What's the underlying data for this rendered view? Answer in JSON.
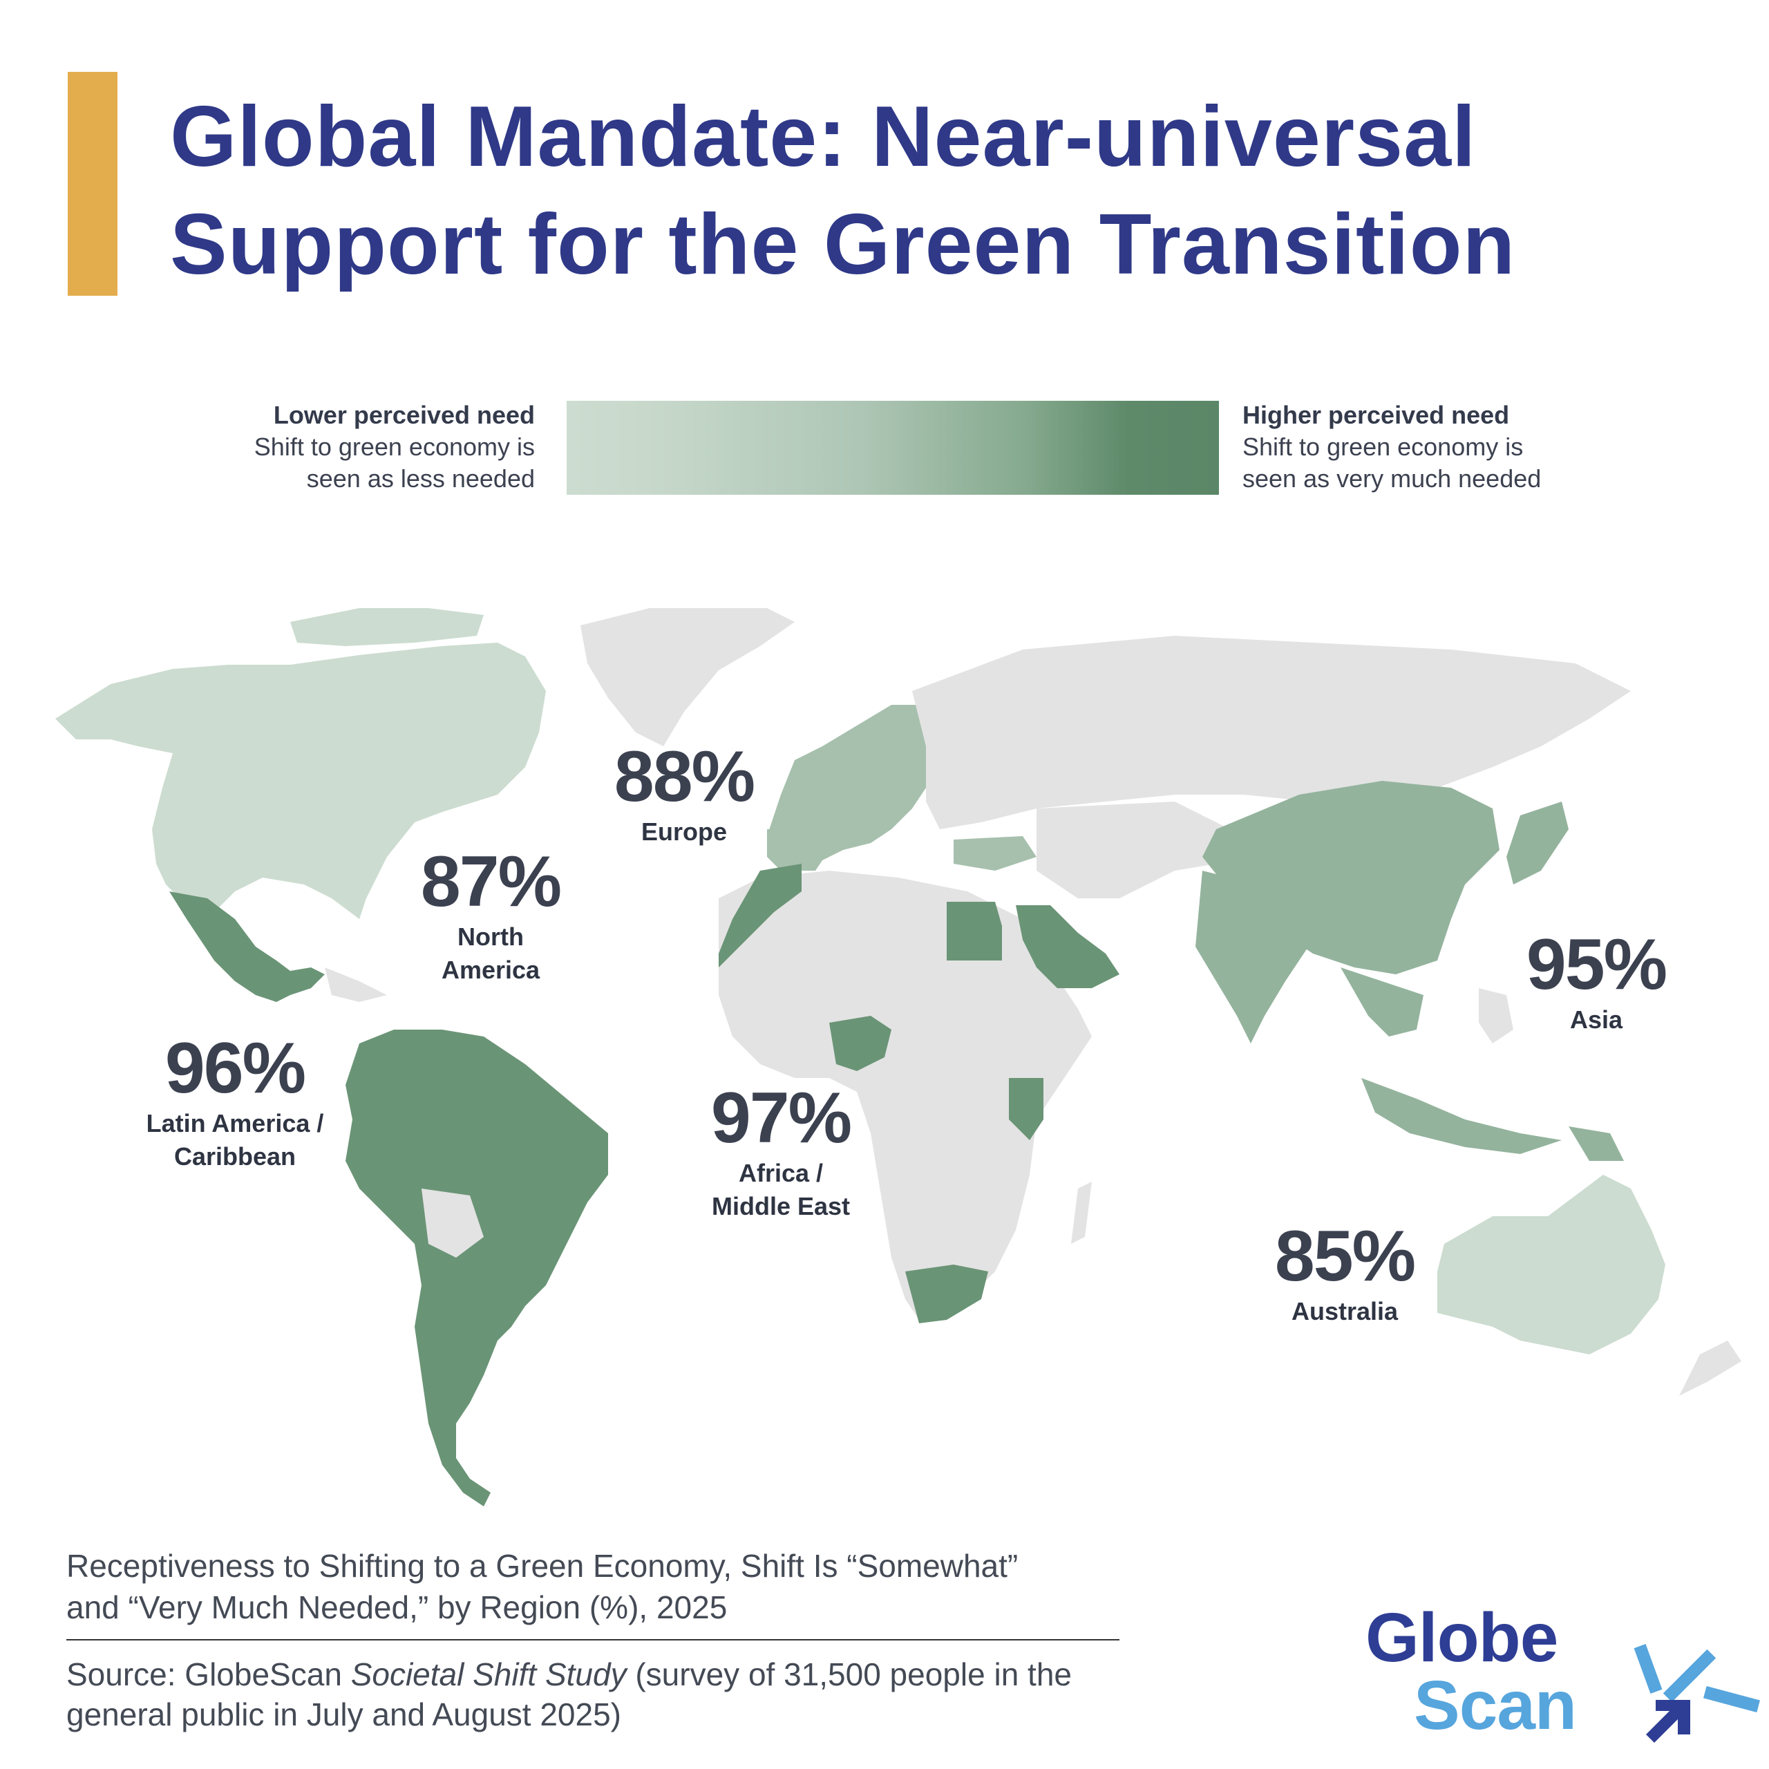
{
  "title": {
    "line1": "Global Mandate: Near-universal",
    "line2": "Support for the Green Transition"
  },
  "colors": {
    "accent": "#e3ad4d",
    "title": "#2f3988",
    "low_need": "#ccdcd0",
    "mid_need": "#94b39d",
    "high_need": "#5e8a6a",
    "no_data": "#e3e3e3",
    "logo_dark": "#2e3e95",
    "logo_light": "#56a5dd"
  },
  "legend": {
    "low": {
      "title": "Lower perceived need",
      "desc_line1": "Shift to green economy is",
      "desc_line2": "seen as less needed"
    },
    "high": {
      "title": "Higher perceived need",
      "desc_line1": "Shift to green economy is",
      "desc_line2": "seen as very much needed"
    }
  },
  "regions": {
    "north_america": {
      "pct": "87%",
      "name_line1": "North",
      "name_line2": "America"
    },
    "europe": {
      "pct": "88%",
      "name": "Europe"
    },
    "latin_america": {
      "pct": "96%",
      "name_line1": "Latin America /",
      "name_line2": "Caribbean"
    },
    "africa_me": {
      "pct": "97%",
      "name_line1": "Africa /",
      "name_line2": "Middle East"
    },
    "asia": {
      "pct": "95%",
      "name": "Asia"
    },
    "australia": {
      "pct": "85%",
      "name": "Australia"
    }
  },
  "caption": {
    "line1": "Receptiveness to Shifting to a Green Economy, Shift Is “Somewhat”",
    "line2": "and “Very Much Needed,” by Region (%), 2025"
  },
  "source": {
    "prefix": "Source: GlobeScan ",
    "study": "Societal Shift Study",
    "suffix": " (survey of 31,500 people in the general public in July and August 2025)"
  },
  "logo": {
    "word1": "Globe",
    "word2": "Scan"
  }
}
